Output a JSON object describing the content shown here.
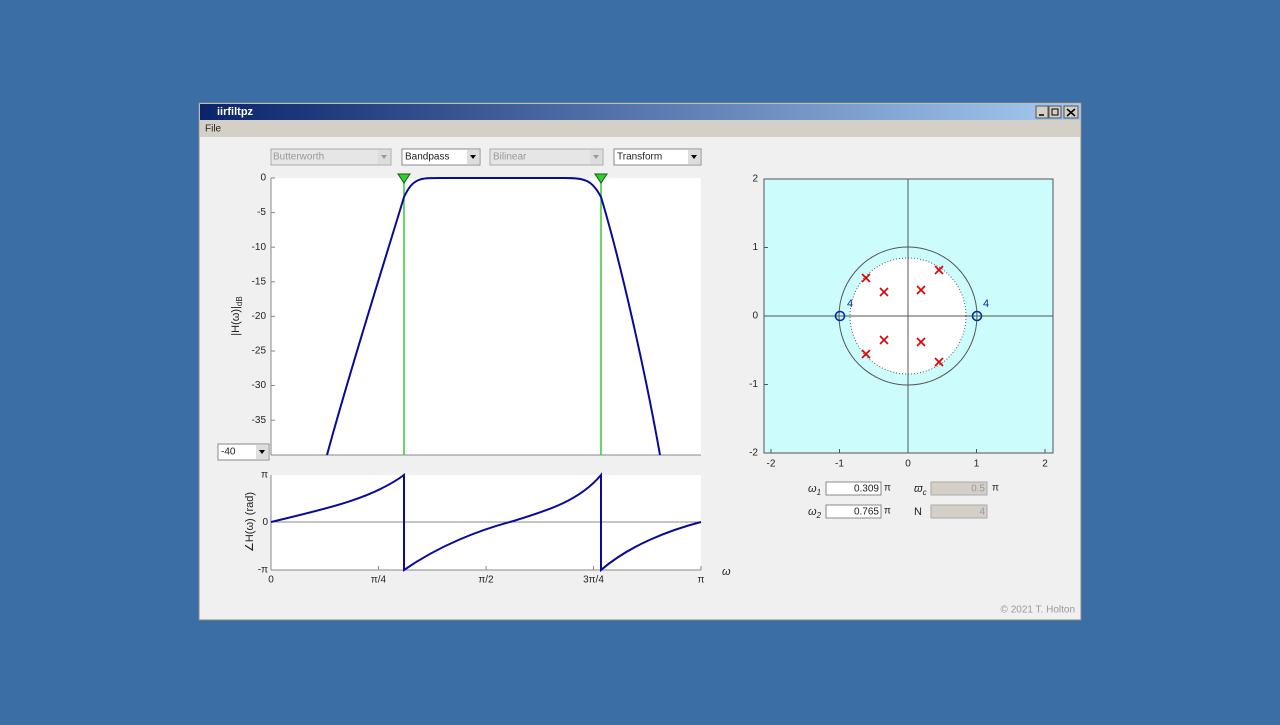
{
  "window": {
    "title": "iirfiltpz"
  },
  "menu": {
    "file": "File"
  },
  "controls": {
    "design": "Butterworth",
    "response": "Bandpass",
    "method": "Bilinear",
    "transform": "Transform",
    "db_floor": "-40"
  },
  "magnitude_plot": {
    "ylabel": "|H(ω)|",
    "ylabel_sub": "dB",
    "yticks": [
      0,
      -5,
      -10,
      -15,
      -20,
      -25,
      -30,
      -35
    ]
  },
  "phase_plot": {
    "ylabel": "∠H(ω) (rad)",
    "yticks": [
      "π",
      "0",
      "-π"
    ],
    "xticks": [
      "0",
      "π/4",
      "π/2",
      "3π/4",
      "π"
    ],
    "xlabel": "ω"
  },
  "pz_plot": {
    "xticks": [
      -2,
      -1,
      0,
      1,
      2
    ],
    "yticks": [
      2,
      1,
      0,
      -1,
      -2
    ],
    "zero_counts": [
      "4",
      "4"
    ]
  },
  "params": {
    "w1": {
      "symbol": "ω",
      "sub": "1",
      "value": "0.309",
      "unit": "π"
    },
    "w2": {
      "symbol": "ω",
      "sub": "2",
      "value": "0.765",
      "unit": "π"
    },
    "wc": {
      "symbol": "ϖ",
      "sub": "c",
      "value": "0.5",
      "unit": "π"
    },
    "n": {
      "symbol": "N",
      "value": "4"
    }
  },
  "copyright": "© 2021 T. Holton"
}
